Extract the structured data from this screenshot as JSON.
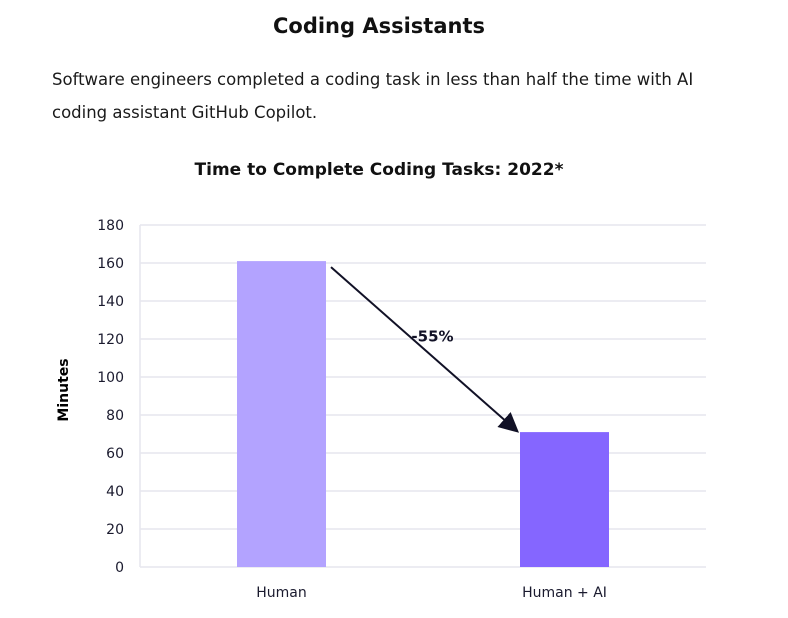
{
  "header": {
    "title": "Coding Assistants",
    "description": "Software engineers completed a coding task in less than half the time with AI coding assistant GitHub Copilot."
  },
  "chart_data": {
    "type": "bar",
    "title": "Time to Complete Coding Tasks: 2022*",
    "xlabel": "",
    "ylabel": "Minutes",
    "categories": [
      "Human",
      "Human + AI"
    ],
    "values": [
      161,
      71
    ],
    "colors": [
      "#b3a3ff",
      "#8566ff"
    ],
    "ylim": [
      0,
      180
    ],
    "yticks": [
      0,
      20,
      40,
      60,
      80,
      100,
      120,
      140,
      160,
      180
    ],
    "grid": true,
    "annotation": {
      "text": "-55%",
      "type": "arrow",
      "from": "Human",
      "to": "Human + AI"
    }
  }
}
